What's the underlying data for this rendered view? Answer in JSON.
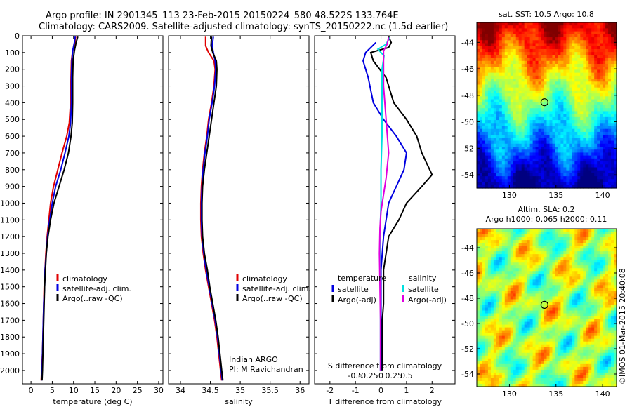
{
  "header": {
    "line1": "Argo profile: IN 2901345_113 23-Feb-2015 20150224_580 48.522S 133.764E",
    "line2": "Climatology: CARS2009. Satellite-adjusted climatology: synTS_20150222.nc (1.5d earlier)"
  },
  "colors": {
    "climatology": "#e00000",
    "satellite": "#0000e0",
    "argo": "#000000",
    "sat_salinity": "#00e0e0",
    "argo_salinity": "#e000e0"
  },
  "chart_data": [
    {
      "type": "line",
      "xlabel": "temperature (deg C)",
      "ylabel": "",
      "xlim": [
        -2,
        31
      ],
      "ylim": [
        2080,
        0
      ],
      "xticks": [
        "0",
        "5",
        "10",
        "15",
        "20",
        "25",
        "30"
      ],
      "yticks": [
        "0",
        "100",
        "200",
        "300",
        "400",
        "500",
        "600",
        "700",
        "800",
        "900",
        "1000",
        "1100",
        "1200",
        "1300",
        "1400",
        "1500",
        "1600",
        "1700",
        "1800",
        "1900",
        "2000"
      ],
      "legend": [
        "climatology",
        "satellite-adj. clim.",
        "Argo(..raw -QC)"
      ],
      "legend_position": "lower-right",
      "series": [
        {
          "name": "climatology",
          "color_key": "climatology",
          "points": [
            [
              10.5,
              5
            ],
            [
              10.3,
              40
            ],
            [
              9.8,
              90
            ],
            [
              9.5,
              150
            ],
            [
              9.4,
              250
            ],
            [
              9.3,
              400
            ],
            [
              9.0,
              520
            ],
            [
              8.4,
              600
            ],
            [
              7.3,
              700
            ],
            [
              6.3,
              800
            ],
            [
              5.3,
              900
            ],
            [
              4.6,
              1000
            ],
            [
              4.2,
              1100
            ],
            [
              3.8,
              1200
            ],
            [
              3.5,
              1300
            ],
            [
              3.3,
              1400
            ],
            [
              3.1,
              1500
            ],
            [
              3.0,
              1600
            ],
            [
              2.9,
              1700
            ],
            [
              2.8,
              1800
            ],
            [
              2.7,
              1900
            ],
            [
              2.5,
              2000
            ],
            [
              2.4,
              2060
            ]
          ]
        },
        {
          "name": "satellite-adj. clim.",
          "color_key": "satellite",
          "points": [
            [
              10.4,
              5
            ],
            [
              10.2,
              40
            ],
            [
              9.8,
              90
            ],
            [
              9.6,
              150
            ],
            [
              9.5,
              250
            ],
            [
              9.5,
              400
            ],
            [
              9.3,
              520
            ],
            [
              8.9,
              600
            ],
            [
              8.0,
              700
            ],
            [
              7.0,
              800
            ],
            [
              5.8,
              900
            ],
            [
              5.0,
              1000
            ],
            [
              4.4,
              1100
            ],
            [
              3.9,
              1200
            ],
            [
              3.6,
              1300
            ],
            [
              3.3,
              1400
            ],
            [
              3.2,
              1500
            ],
            [
              3.0,
              1600
            ],
            [
              2.9,
              1700
            ],
            [
              2.8,
              1800
            ],
            [
              2.7,
              1900
            ],
            [
              2.6,
              2000
            ],
            [
              2.5,
              2060
            ]
          ]
        },
        {
          "name": "Argo(..raw -QC)",
          "color_key": "argo",
          "points": [
            [
              11.0,
              5
            ],
            [
              10.6,
              40
            ],
            [
              10.2,
              90
            ],
            [
              9.9,
              150
            ],
            [
              9.8,
              250
            ],
            [
              9.8,
              400
            ],
            [
              9.7,
              520
            ],
            [
              9.4,
              600
            ],
            [
              8.8,
              700
            ],
            [
              7.8,
              800
            ],
            [
              6.6,
              900
            ],
            [
              5.4,
              1000
            ],
            [
              4.6,
              1100
            ],
            [
              4.0,
              1200
            ],
            [
              3.6,
              1300
            ],
            [
              3.4,
              1400
            ],
            [
              3.2,
              1500
            ],
            [
              3.1,
              1600
            ],
            [
              3.0,
              1700
            ],
            [
              2.9,
              1800
            ],
            [
              2.8,
              1900
            ],
            [
              2.7,
              2000
            ],
            [
              2.6,
              2060
            ]
          ]
        }
      ]
    },
    {
      "type": "line",
      "xlabel": "salinity",
      "ylabel": "",
      "xlim": [
        33.8,
        36.15
      ],
      "ylim": [
        2080,
        0
      ],
      "xticks": [
        "34",
        "34.5",
        "35",
        "35.5",
        "36"
      ],
      "legend": [
        "climatology",
        "satellite-adj. clim.",
        "Argo(..raw -QC)"
      ],
      "legend_position": "lower-right",
      "annotation": [
        "Indian ARGO",
        "PI: M Ravichandran"
      ],
      "series": [
        {
          "name": "climatology",
          "color_key": "climatology",
          "points": [
            [
              34.42,
              5
            ],
            [
              34.42,
              60
            ],
            [
              34.47,
              100
            ],
            [
              34.56,
              150
            ],
            [
              34.58,
              200
            ],
            [
              34.56,
              300
            ],
            [
              34.52,
              400
            ],
            [
              34.47,
              500
            ],
            [
              34.44,
              600
            ],
            [
              34.4,
              700
            ],
            [
              34.37,
              800
            ],
            [
              34.35,
              900
            ],
            [
              34.34,
              1000
            ],
            [
              34.34,
              1100
            ],
            [
              34.35,
              1200
            ],
            [
              34.38,
              1300
            ],
            [
              34.42,
              1400
            ],
            [
              34.47,
              1500
            ],
            [
              34.52,
              1600
            ],
            [
              34.57,
              1700
            ],
            [
              34.61,
              1800
            ],
            [
              34.64,
              1900
            ],
            [
              34.67,
              2000
            ],
            [
              34.69,
              2060
            ]
          ]
        },
        {
          "name": "satellite-adj. clim.",
          "color_key": "satellite",
          "points": [
            [
              34.55,
              5
            ],
            [
              34.53,
              60
            ],
            [
              34.55,
              100
            ],
            [
              34.58,
              150
            ],
            [
              34.59,
              200
            ],
            [
              34.57,
              300
            ],
            [
              34.53,
              400
            ],
            [
              34.48,
              500
            ],
            [
              34.45,
              600
            ],
            [
              34.41,
              700
            ],
            [
              34.38,
              800
            ],
            [
              34.36,
              900
            ],
            [
              34.35,
              1000
            ],
            [
              34.35,
              1100
            ],
            [
              34.36,
              1200
            ],
            [
              34.39,
              1300
            ],
            [
              34.43,
              1400
            ],
            [
              34.48,
              1500
            ],
            [
              34.53,
              1600
            ],
            [
              34.58,
              1700
            ],
            [
              34.62,
              1800
            ],
            [
              34.65,
              1900
            ],
            [
              34.68,
              2000
            ],
            [
              34.7,
              2060
            ]
          ]
        },
        {
          "name": "Argo(..raw -QC)",
          "color_key": "argo",
          "points": [
            [
              34.52,
              5
            ],
            [
              34.51,
              60
            ],
            [
              34.54,
              100
            ],
            [
              34.6,
              150
            ],
            [
              34.61,
              200
            ],
            [
              34.6,
              300
            ],
            [
              34.56,
              400
            ],
            [
              34.52,
              500
            ],
            [
              34.48,
              600
            ],
            [
              34.44,
              700
            ],
            [
              34.4,
              800
            ],
            [
              34.37,
              900
            ],
            [
              34.36,
              1000
            ],
            [
              34.36,
              1100
            ],
            [
              34.37,
              1200
            ],
            [
              34.4,
              1300
            ],
            [
              34.45,
              1400
            ],
            [
              34.49,
              1500
            ],
            [
              34.54,
              1600
            ],
            [
              34.59,
              1700
            ],
            [
              34.63,
              1800
            ],
            [
              34.66,
              1900
            ],
            [
              34.69,
              2000
            ],
            [
              34.71,
              2060
            ]
          ]
        }
      ]
    },
    {
      "type": "line",
      "xlabel": "T difference from climatology",
      "x2label": "S difference from climatology",
      "xlim": [
        -2.6,
        2.9
      ],
      "ylim": [
        2080,
        0
      ],
      "xticks": [
        "-2",
        "-1",
        "0",
        "1",
        "2"
      ],
      "x2ticks": [
        "-0.5",
        "-0.25",
        "0",
        "0.25",
        "0.5"
      ],
      "legend_titles": [
        "temperature",
        "salinity"
      ],
      "legend_temperature": [
        "satellite",
        "Argo(-adj)"
      ],
      "legend_salinity": [
        "satellite",
        "Argo(-adj)"
      ],
      "series": [
        {
          "name": "temperature satellite",
          "color_key": "satellite",
          "points": [
            [
              -0.2,
              40
            ],
            [
              -0.6,
              100
            ],
            [
              -0.7,
              150
            ],
            [
              -0.5,
              250
            ],
            [
              -0.3,
              400
            ],
            [
              0.1,
              500
            ],
            [
              0.6,
              600
            ],
            [
              1.0,
              700
            ],
            [
              0.9,
              800
            ],
            [
              0.6,
              900
            ],
            [
              0.3,
              1000
            ],
            [
              0.2,
              1100
            ],
            [
              0.1,
              1200
            ],
            [
              0.05,
              1300
            ],
            [
              0.0,
              1400
            ],
            [
              0.0,
              1500
            ],
            [
              0.0,
              1600
            ],
            [
              0.0,
              1700
            ],
            [
              0.0,
              1800
            ],
            [
              0.0,
              1900
            ],
            [
              0.0,
              2000
            ]
          ]
        },
        {
          "name": "temperature Argo(-adj)",
          "color_key": "argo",
          "points": [
            [
              0.3,
              5
            ],
            [
              0.4,
              40
            ],
            [
              0.3,
              70
            ],
            [
              -0.4,
              100
            ],
            [
              -0.3,
              150
            ],
            [
              0.2,
              250
            ],
            [
              0.5,
              400
            ],
            [
              1.0,
              500
            ],
            [
              1.4,
              600
            ],
            [
              1.6,
              700
            ],
            [
              2.0,
              830
            ],
            [
              1.6,
              900
            ],
            [
              1.0,
              1000
            ],
            [
              0.7,
              1100
            ],
            [
              0.3,
              1200
            ],
            [
              0.2,
              1300
            ],
            [
              0.1,
              1400
            ],
            [
              0.1,
              1500
            ],
            [
              0.1,
              1600
            ],
            [
              0.05,
              1700
            ],
            [
              0.05,
              1800
            ],
            [
              0.05,
              1900
            ],
            [
              0.05,
              2000
            ]
          ]
        },
        {
          "name": "salinity satellite",
          "color_key": "sat_salinity",
          "points": [
            [
              0.17,
              10
            ],
            [
              0.1,
              50
            ],
            [
              -0.06,
              80
            ],
            [
              0.06,
              120
            ],
            [
              0.02,
              200
            ],
            [
              0.02,
              400
            ],
            [
              0.02,
              600
            ],
            [
              0.0,
              800
            ],
            [
              0.0,
              1000
            ],
            [
              -0.02,
              1200
            ],
            [
              -0.02,
              1400
            ],
            [
              -0.01,
              1600
            ],
            [
              -0.01,
              1800
            ],
            [
              -0.01,
              2000
            ]
          ]
        },
        {
          "name": "salinity Argo(-adj)",
          "color_key": "argo_salinity",
          "points": [
            [
              0.15,
              10
            ],
            [
              0.12,
              50
            ],
            [
              0.05,
              90
            ],
            [
              0.05,
              150
            ],
            [
              0.05,
              300
            ],
            [
              0.1,
              500
            ],
            [
              0.15,
              700
            ],
            [
              0.1,
              850
            ],
            [
              0.05,
              950
            ],
            [
              0.0,
              1050
            ],
            [
              -0.02,
              1150
            ],
            [
              -0.03,
              1300
            ],
            [
              -0.02,
              1500
            ],
            [
              -0.01,
              1700
            ],
            [
              -0.01,
              1900
            ],
            [
              -0.01,
              2000
            ]
          ]
        }
      ]
    },
    {
      "type": "heatmap",
      "title": "sat. SST: 10.5 Argo: 10.8",
      "xticks": [
        "130",
        "135",
        "140"
      ],
      "yticks": [
        "-44",
        "-46",
        "-48",
        "-50",
        "-52",
        "-54"
      ],
      "xlim": [
        126.5,
        141.5
      ],
      "ylim": [
        -55,
        -42.5
      ],
      "marker": [
        133.764,
        -48.522
      ]
    },
    {
      "type": "heatmap",
      "title_lines": [
        "Altim. SLA: 0.2",
        "Argo h1000: 0.065 h2000: 0.11"
      ],
      "xticks": [
        "130",
        "135",
        "140"
      ],
      "yticks": [
        "-44",
        "-46",
        "-48",
        "-50",
        "-52",
        "-54"
      ],
      "xlim": [
        126.5,
        141.5
      ],
      "ylim": [
        -55,
        -42.5
      ],
      "marker": [
        133.764,
        -48.522
      ]
    }
  ],
  "footer": {
    "credit": "©IMOS 01-Mar-2015 20:40:08"
  }
}
